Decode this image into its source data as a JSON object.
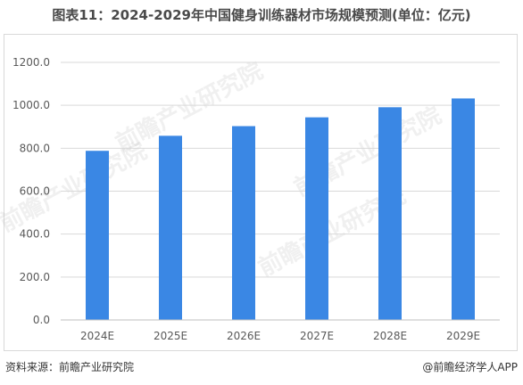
{
  "title": "图表11：2024-2029年中国健身训练器材市场规模预测(单位：亿元)",
  "watermark": "前瞻产业研究院",
  "footer": {
    "source": "资料来源：前瞻产业研究院",
    "credit": "@前瞻经济学人APP"
  },
  "colors": {
    "bar": "#3a87e4",
    "grid": "#d9d9d9",
    "axis_text": "#595959"
  },
  "chart_data": {
    "type": "bar",
    "categories": [
      "2024E",
      "2025E",
      "2026E",
      "2027E",
      "2028E",
      "2029E"
    ],
    "values": [
      788,
      858,
      903,
      944,
      991,
      1032
    ],
    "ylim": [
      0,
      1200
    ],
    "yticks": [
      "0.0",
      "200.0",
      "400.0",
      "600.0",
      "800.0",
      "1000.0",
      "1200.0"
    ],
    "ytick_values": [
      0,
      200,
      400,
      600,
      800,
      1000,
      1200
    ],
    "grid": true,
    "legend": "none",
    "xlabel": "",
    "ylabel": ""
  }
}
